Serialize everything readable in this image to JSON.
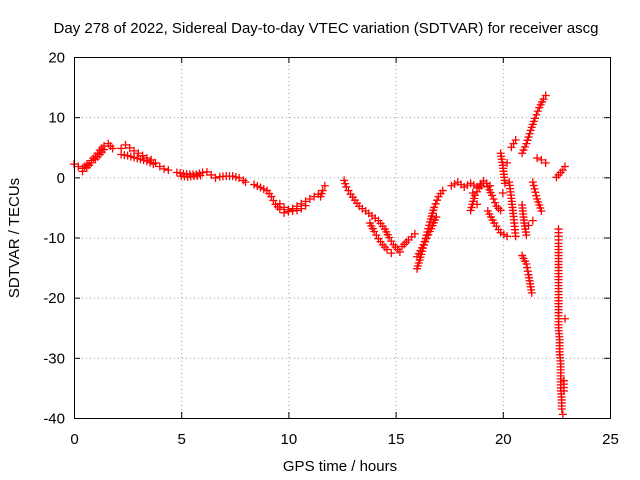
{
  "chart_data": {
    "type": "scatter",
    "title": "Day 278 of 2022, Sidereal Day-to-day VTEC variation (SDTVAR) for receiver ascg",
    "xlabel": "GPS time / hours",
    "ylabel": "SDTVAR / TECUs",
    "xlim": [
      0,
      25
    ],
    "ylim": [
      -40,
      20
    ],
    "xticks": [
      0,
      5,
      10,
      15,
      20,
      25
    ],
    "yticks": [
      -40,
      -30,
      -20,
      -10,
      0,
      10,
      20
    ],
    "xtick_labels": [
      "0",
      "5",
      "10",
      "15",
      "20",
      "25"
    ],
    "ytick_labels": [
      "-40",
      "-30",
      "-20",
      "-10",
      "0",
      "10",
      "20"
    ],
    "grid": true,
    "marker": "plus",
    "series": [
      {
        "name": "SDTVAR",
        "color": "#ff0000",
        "polylines": [
          [
            [
              0.0,
              2.2
            ],
            [
              0.2,
              1.8
            ],
            [
              0.4,
              1.5
            ],
            [
              0.6,
              2.2
            ],
            [
              0.8,
              2.8
            ],
            [
              1.0,
              3.5
            ],
            [
              1.2,
              4.5
            ],
            [
              1.4,
              5.2
            ],
            [
              1.6,
              5.6
            ],
            [
              1.8,
              4.8
            ]
          ],
          [
            [
              0.4,
              1.0
            ],
            [
              0.6,
              1.6
            ],
            [
              0.8,
              2.4
            ],
            [
              1.0,
              3.0
            ],
            [
              1.2,
              3.8
            ],
            [
              1.4,
              4.6
            ]
          ],
          [
            [
              2.2,
              4.8
            ],
            [
              2.4,
              5.4
            ],
            [
              2.6,
              4.9
            ],
            [
              2.8,
              4.4
            ],
            [
              3.0,
              4.0
            ],
            [
              3.2,
              3.6
            ],
            [
              3.4,
              3.2
            ],
            [
              3.6,
              2.9
            ],
            [
              3.8,
              2.4
            ],
            [
              4.0,
              1.8
            ],
            [
              4.2,
              1.4
            ],
            [
              4.4,
              1.2
            ]
          ],
          [
            [
              2.2,
              3.8
            ],
            [
              2.5,
              3.6
            ],
            [
              2.8,
              3.3
            ],
            [
              3.1,
              3.0
            ],
            [
              3.4,
              2.7
            ],
            [
              3.7,
              2.2
            ]
          ],
          [
            [
              4.8,
              0.8
            ],
            [
              5.1,
              0.6
            ],
            [
              5.4,
              0.5
            ],
            [
              5.7,
              0.5
            ],
            [
              6.0,
              0.8
            ],
            [
              6.2,
              0.9
            ],
            [
              6.4,
              0.4
            ],
            [
              6.6,
              -0.1
            ]
          ],
          [
            [
              5.0,
              0.2
            ],
            [
              5.3,
              0.1
            ],
            [
              5.6,
              0.2
            ],
            [
              5.9,
              0.3
            ]
          ],
          [
            [
              6.8,
              0.1
            ],
            [
              7.1,
              0.2
            ],
            [
              7.4,
              0.2
            ],
            [
              7.7,
              -0.1
            ],
            [
              7.9,
              -0.5
            ],
            [
              8.0,
              -0.8
            ]
          ],
          [
            [
              8.4,
              -1.2
            ],
            [
              8.7,
              -1.7
            ],
            [
              9.0,
              -2.2
            ],
            [
              9.2,
              -3.2
            ],
            [
              9.4,
              -4.5
            ],
            [
              9.6,
              -5.3
            ],
            [
              9.8,
              -5.9
            ],
            [
              10.0,
              -5.7
            ],
            [
              10.2,
              -5.2
            ],
            [
              10.4,
              -4.8
            ],
            [
              10.6,
              -4.4
            ],
            [
              10.8,
              -4.0
            ],
            [
              11.0,
              -3.6
            ],
            [
              11.2,
              -3.2
            ],
            [
              11.4,
              -2.8
            ]
          ],
          [
            [
              9.6,
              -4.4
            ],
            [
              9.8,
              -5.0
            ],
            [
              10.0,
              -5.4
            ],
            [
              10.2,
              -5.6
            ],
            [
              10.4,
              -5.5
            ],
            [
              10.6,
              -5.2
            ],
            [
              10.8,
              -4.7
            ]
          ],
          [
            [
              11.5,
              -3.2
            ],
            [
              11.6,
              -2.2
            ],
            [
              11.7,
              -1.4
            ]
          ],
          [
            [
              12.6,
              -0.5
            ],
            [
              12.7,
              -1.6
            ],
            [
              12.9,
              -2.8
            ],
            [
              13.1,
              -3.8
            ],
            [
              13.3,
              -4.8
            ],
            [
              13.6,
              -5.6
            ],
            [
              13.9,
              -6.4
            ],
            [
              14.2,
              -7.2
            ],
            [
              14.5,
              -8.6
            ],
            [
              14.7,
              -10.0
            ],
            [
              14.9,
              -11.2
            ],
            [
              15.1,
              -12.0
            ],
            [
              15.2,
              -12.4
            ]
          ],
          [
            [
              13.8,
              -7.6
            ],
            [
              14.0,
              -9.0
            ],
            [
              14.2,
              -10.2
            ],
            [
              14.4,
              -11.2
            ],
            [
              14.6,
              -12.0
            ],
            [
              14.8,
              -12.6
            ]
          ],
          [
            [
              15.3,
              -11.5
            ],
            [
              15.6,
              -10.4
            ],
            [
              15.9,
              -9.4
            ]
          ],
          [
            [
              16.0,
              -15.2
            ],
            [
              16.2,
              -12.8
            ],
            [
              16.4,
              -10.2
            ],
            [
              16.6,
              -7.4
            ],
            [
              16.8,
              -5.0
            ],
            [
              17.0,
              -3.2
            ],
            [
              17.2,
              -2.2
            ]
          ],
          [
            [
              16.0,
              -13.2
            ],
            [
              16.3,
              -11.2
            ],
            [
              16.6,
              -9.0
            ],
            [
              16.9,
              -6.6
            ]
          ],
          [
            [
              17.6,
              -1.4
            ],
            [
              17.9,
              -0.8
            ],
            [
              18.2,
              -1.6
            ],
            [
              18.5,
              -1.0
            ],
            [
              18.8,
              -1.6
            ],
            [
              19.1,
              -0.6
            ],
            [
              19.4,
              -1.4
            ]
          ],
          [
            [
              18.5,
              -5.5
            ],
            [
              18.7,
              -3.0
            ],
            [
              18.9,
              -1.8
            ],
            [
              19.1,
              -1.0
            ],
            [
              19.3,
              -1.6
            ],
            [
              19.5,
              -3.0
            ],
            [
              19.7,
              -4.8
            ],
            [
              19.9,
              -5.5
            ]
          ],
          [
            [
              19.3,
              -5.6
            ],
            [
              19.6,
              -7.6
            ],
            [
              19.9,
              -9.2
            ],
            [
              20.2,
              -9.8
            ]
          ],
          [
            [
              19.9,
              4.0
            ],
            [
              20.0,
              2.0
            ],
            [
              20.1,
              -1.0
            ]
          ],
          [
            [
              20.4,
              5.0
            ],
            [
              20.5,
              5.6
            ],
            [
              20.6,
              6.2
            ]
          ],
          [
            [
              20.3,
              -0.8
            ],
            [
              20.4,
              -3.5
            ],
            [
              20.5,
              -6.5
            ],
            [
              20.6,
              -9.8
            ]
          ],
          [
            [
              20.9,
              -4.6
            ],
            [
              21.0,
              -7.6
            ],
            [
              21.1,
              -9.6
            ]
          ],
          [
            [
              20.9,
              4.0
            ],
            [
              21.1,
              5.6
            ],
            [
              21.3,
              7.8
            ],
            [
              21.5,
              9.8
            ],
            [
              21.7,
              11.6
            ],
            [
              21.9,
              13.0
            ],
            [
              22.0,
              13.6
            ]
          ],
          [
            [
              20.9,
              -13.0
            ],
            [
              21.1,
              -14.4
            ],
            [
              21.2,
              -16.2
            ],
            [
              21.3,
              -18.2
            ],
            [
              21.35,
              -19.2
            ]
          ],
          [
            [
              21.4,
              -0.8
            ],
            [
              21.6,
              -3.6
            ],
            [
              21.8,
              -5.6
            ]
          ],
          [
            [
              21.6,
              3.2
            ],
            [
              21.8,
              2.9
            ],
            [
              22.0,
              2.4
            ]
          ],
          [
            [
              22.5,
              0.0
            ],
            [
              22.6,
              0.4
            ],
            [
              22.8,
              1.2
            ],
            [
              22.9,
              1.8
            ]
          ],
          [
            [
              22.6,
              -8.6
            ],
            [
              22.6,
              -11
            ],
            [
              22.6,
              -13
            ],
            [
              22.6,
              -15
            ],
            [
              22.6,
              -17
            ],
            [
              22.6,
              -19
            ],
            [
              22.6,
              -21
            ],
            [
              22.6,
              -23
            ],
            [
              22.6,
              -25
            ],
            [
              22.65,
              -27
            ],
            [
              22.65,
              -29
            ],
            [
              22.7,
              -31
            ],
            [
              22.7,
              -33
            ],
            [
              22.7,
              -35
            ],
            [
              22.75,
              -37
            ],
            [
              22.75,
              -38.5
            ],
            [
              22.8,
              -39.4
            ]
          ],
          [
            [
              22.85,
              -33.8
            ],
            [
              22.85,
              -35.5
            ]
          ]
        ],
        "points": [
          [
            22.9,
            -23.5
          ],
          [
            21.4,
            -7.2
          ],
          [
            20.2,
            2.4
          ],
          [
            20.0,
            -2.6
          ],
          [
            18.8,
            -4.5
          ],
          [
            18.6,
            -2.6
          ],
          [
            21.2,
            -8.0
          ]
        ]
      }
    ]
  }
}
